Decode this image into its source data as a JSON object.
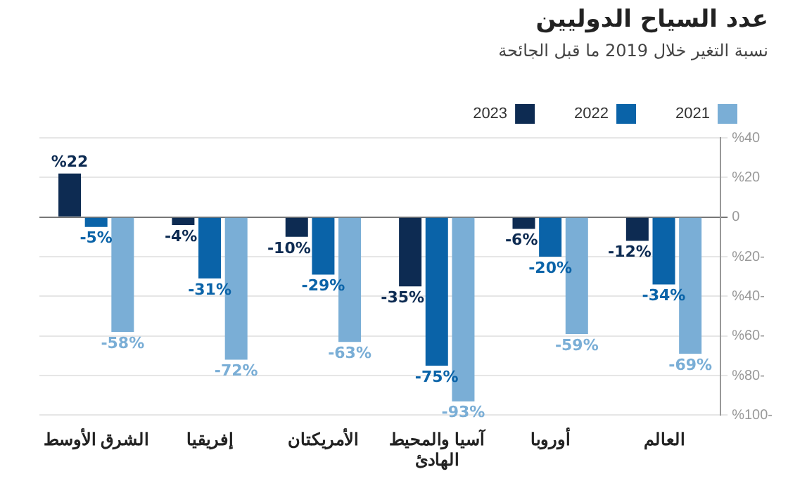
{
  "chart_data": {
    "type": "bar",
    "title": "عدد السياح الدوليين",
    "subtitle": "نسبة التغير خلال 2019 ما قبل الجائحة",
    "categories": [
      "الشرق الأوسط",
      "إفريقيا",
      "الأمريكتان",
      "آسيا والمحيط الهادئ",
      "أوروبا",
      "العالم"
    ],
    "series": [
      {
        "name": "2023",
        "color": "#0d2b52",
        "values": [
          22,
          -4,
          -10,
          -35,
          -6,
          -12
        ],
        "value_labels": [
          "%22",
          "-4%",
          "-10%",
          "-35%",
          "-6%",
          "-12%"
        ]
      },
      {
        "name": "2022",
        "color": "#0a63a8",
        "values": [
          -5,
          -31,
          -29,
          -75,
          -20,
          -34
        ],
        "value_labels": [
          "-5%",
          "-31%",
          "-29%",
          "-75%",
          "-20%",
          "-34%"
        ]
      },
      {
        "name": "2021",
        "color": "#7aaed6",
        "values": [
          -58,
          -72,
          -63,
          -93,
          -59,
          -69
        ],
        "value_labels": [
          "-58%",
          "-72%",
          "-63%",
          "-93%",
          "-59%",
          "-69%"
        ]
      }
    ],
    "ylim": [
      -100,
      40
    ],
    "yticks": [
      {
        "value": 40,
        "label": "%40"
      },
      {
        "value": 20,
        "label": "%20"
      },
      0,
      {
        "value": -20,
        "label": "%20-"
      },
      {
        "value": -40,
        "label": "%40-"
      },
      {
        "value": -60,
        "label": "%60-"
      },
      {
        "value": -80,
        "label": "%80-"
      },
      {
        "value": -100,
        "label": "%100-"
      }
    ],
    "grid": "y",
    "legend": "top right"
  }
}
